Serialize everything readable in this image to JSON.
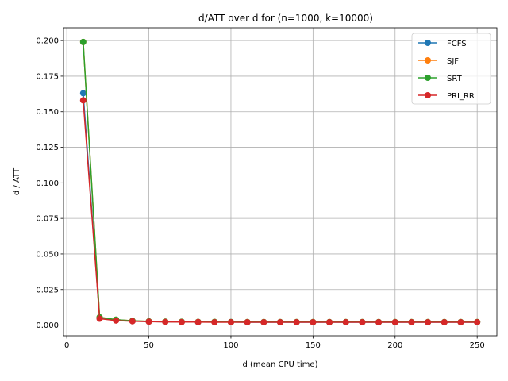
{
  "chart_data": {
    "type": "line",
    "title": "d/ATT over d for (n=1000, k=10000)",
    "xlabel": "d (mean CPU time)",
    "ylabel": "d / ATT",
    "xlim": [
      -2,
      262
    ],
    "ylim": [
      -0.0075,
      0.209
    ],
    "xticks": [
      0,
      50,
      100,
      150,
      200,
      250
    ],
    "xtick_labels": [
      "0",
      "50",
      "100",
      "150",
      "200",
      "250"
    ],
    "yticks": [
      0.0,
      0.025,
      0.05,
      0.075,
      0.1,
      0.125,
      0.15,
      0.175,
      0.2
    ],
    "ytick_labels": [
      "0.000",
      "0.025",
      "0.050",
      "0.075",
      "0.100",
      "0.125",
      "0.150",
      "0.175",
      "0.200"
    ],
    "grid": true,
    "legend_position": "top-right",
    "x": [
      10,
      20,
      30,
      40,
      50,
      60,
      70,
      80,
      90,
      100,
      110,
      120,
      130,
      140,
      150,
      160,
      170,
      180,
      190,
      200,
      210,
      220,
      230,
      240,
      250
    ],
    "series": [
      {
        "name": "FCFS",
        "color": "#1f77b4",
        "values": [
          0.163,
          0.005,
          0.0035,
          0.0028,
          0.0025,
          0.0023,
          0.0022,
          0.0021,
          0.0021,
          0.0021,
          0.002,
          0.002,
          0.002,
          0.002,
          0.002,
          0.002,
          0.002,
          0.002,
          0.002,
          0.002,
          0.002,
          0.002,
          0.002,
          0.002,
          0.002
        ]
      },
      {
        "name": "SJF",
        "color": "#ff7f0e",
        "values": [
          0.199,
          0.0055,
          0.0038,
          0.003,
          0.0026,
          0.0024,
          0.0023,
          0.0022,
          0.0022,
          0.0021,
          0.0021,
          0.0021,
          0.0021,
          0.0021,
          0.0021,
          0.0021,
          0.0021,
          0.0021,
          0.0021,
          0.0021,
          0.0021,
          0.0021,
          0.0021,
          0.0021,
          0.0021
        ]
      },
      {
        "name": "SRT",
        "color": "#2ca02c",
        "values": [
          0.199,
          0.0055,
          0.0038,
          0.003,
          0.0026,
          0.0024,
          0.0023,
          0.0022,
          0.0022,
          0.0021,
          0.0021,
          0.0021,
          0.0021,
          0.0021,
          0.0021,
          0.0021,
          0.0021,
          0.0021,
          0.0021,
          0.0021,
          0.0021,
          0.0021,
          0.0021,
          0.0021,
          0.0021
        ]
      },
      {
        "name": "PRI_RR",
        "color": "#d62728",
        "values": [
          0.158,
          0.0045,
          0.0032,
          0.0027,
          0.0024,
          0.0022,
          0.0021,
          0.0021,
          0.002,
          0.002,
          0.002,
          0.002,
          0.002,
          0.002,
          0.002,
          0.002,
          0.002,
          0.002,
          0.002,
          0.002,
          0.002,
          0.002,
          0.002,
          0.002,
          0.002
        ]
      }
    ]
  }
}
